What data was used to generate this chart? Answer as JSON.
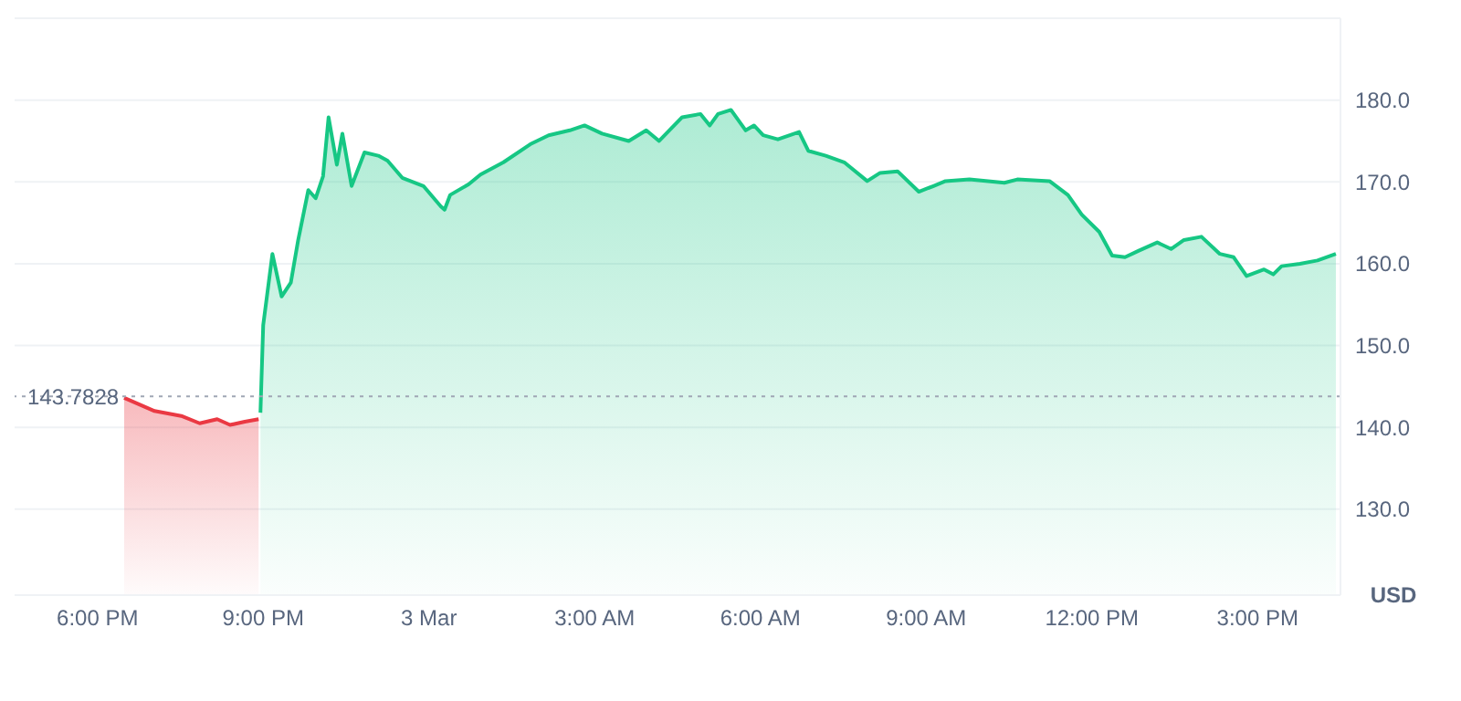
{
  "chart_data": {
    "type": "area",
    "ylabel": "USD",
    "xlim": [
      "--03-02T16:30",
      "--03-03T16:30"
    ],
    "ylim": [
      119.5,
      190
    ],
    "xticks": [
      {
        "value": "--03-02T18:00",
        "label": "6:00 PM"
      },
      {
        "value": "--03-02T21:00",
        "label": "9:00 PM"
      },
      {
        "value": "--03-03T00:00",
        "label": "3 Mar"
      },
      {
        "value": "--03-03T03:00",
        "label": "3:00 AM"
      },
      {
        "value": "--03-03T06:00",
        "label": "6:00 AM"
      },
      {
        "value": "--03-03T09:00",
        "label": "9:00 AM"
      },
      {
        "value": "--03-03T12:00",
        "label": "12:00 PM"
      },
      {
        "value": "--03-03T15:00",
        "label": "3:00 PM"
      }
    ],
    "yticks": [
      {
        "value": 130,
        "label": "130.0"
      },
      {
        "value": 140,
        "label": "140.0"
      },
      {
        "value": 150,
        "label": "150.0"
      },
      {
        "value": 160,
        "label": "160.0"
      },
      {
        "value": 170,
        "label": "170.0"
      },
      {
        "value": 180,
        "label": "180.0"
      }
    ],
    "grid": "y",
    "ref_lines": [
      {
        "axis": "y",
        "value": 143.7828,
        "label": "143.7828",
        "color": "#a0a7b5",
        "line_style": "dotted"
      }
    ],
    "series": [
      {
        "color": "#ea3943",
        "x": [
          "--03-02T18:29",
          "--03-02T19:02",
          "--03-02T19:31",
          "--03-02T19:51",
          "--03-02T20:10",
          "--03-02T20:24",
          "--03-02T20:40",
          "--03-02T20:55"
        ],
        "values": [
          143.6,
          142.0,
          141.4,
          140.5,
          141.0,
          140.3,
          140.7,
          141.0
        ]
      },
      {
        "color": "#16c784",
        "x": [
          "--03-02T20:57",
          "--03-02T21:00",
          "--03-02T21:10",
          "--03-02T21:20",
          "--03-02T21:30",
          "--03-02T21:38",
          "--03-02T21:49",
          "--03-02T21:57",
          "--03-02T22:05",
          "--03-02T22:11",
          "--03-02T22:20",
          "--03-02T22:26",
          "--03-02T22:36",
          "--03-02T22:50",
          "--03-02T23:05",
          "--03-02T23:15",
          "--03-02T23:31",
          "--03-02T23:54",
          "--03-03T00:13",
          "--03-03T00:17",
          "--03-03T00:23",
          "--03-03T00:43",
          "--03-03T00:56",
          "--03-03T01:21",
          "--03-03T01:50",
          "--03-03T02:10",
          "--03-03T02:33",
          "--03-03T02:49",
          "--03-03T03:08",
          "--03-03T03:37",
          "--03-03T03:56",
          "--03-03T04:10",
          "--03-03T04:35",
          "--03-03T04:55",
          "--03-03T05:05",
          "--03-03T05:14",
          "--03-03T05:28",
          "--03-03T05:44",
          "--03-03T05:53",
          "--03-03T06:03",
          "--03-03T06:19",
          "--03-03T06:42",
          "--03-03T06:52",
          "--03-03T07:11",
          "--03-03T07:31",
          "--03-03T07:56",
          "--03-03T08:10",
          "--03-03T08:29",
          "--03-03T08:52",
          "--03-03T09:08",
          "--03-03T09:21",
          "--03-03T09:47",
          "--03-03T10:25",
          "--03-03T10:39",
          "--03-03T11:14",
          "--03-03T11:34",
          "--03-03T11:49",
          "--03-03T12:08",
          "--03-03T12:22",
          "--03-03T12:36",
          "--03-03T12:51",
          "--03-03T13:11",
          "--03-03T13:26",
          "--03-03T13:40",
          "--03-03T13:59",
          "--03-03T14:19",
          "--03-03T14:34",
          "--03-03T14:48",
          "--03-03T15:07",
          "--03-03T15:17",
          "--03-03T15:26",
          "--03-03T15:46",
          "--03-03T16:05",
          "--03-03T16:25"
        ],
        "values": [
          141.8,
          152.5,
          161.2,
          156.0,
          157.7,
          162.9,
          169.0,
          168.0,
          170.7,
          177.9,
          172.1,
          175.9,
          169.5,
          173.6,
          173.2,
          172.6,
          170.5,
          169.5,
          167.0,
          166.6,
          168.4,
          169.7,
          170.9,
          172.4,
          174.6,
          175.7,
          176.3,
          176.9,
          175.9,
          175.0,
          176.3,
          175.0,
          177.9,
          178.3,
          176.9,
          178.3,
          178.8,
          176.3,
          176.9,
          175.7,
          175.2,
          176.1,
          173.8,
          173.2,
          172.4,
          170.1,
          171.1,
          171.3,
          168.8,
          169.5,
          170.1,
          170.3,
          169.9,
          170.3,
          170.1,
          168.4,
          166.0,
          163.9,
          161.0,
          160.8,
          161.6,
          162.6,
          161.8,
          162.9,
          163.3,
          161.2,
          160.8,
          158.5,
          159.3,
          158.7,
          159.7,
          160.0,
          160.4,
          161.2
        ]
      }
    ]
  }
}
